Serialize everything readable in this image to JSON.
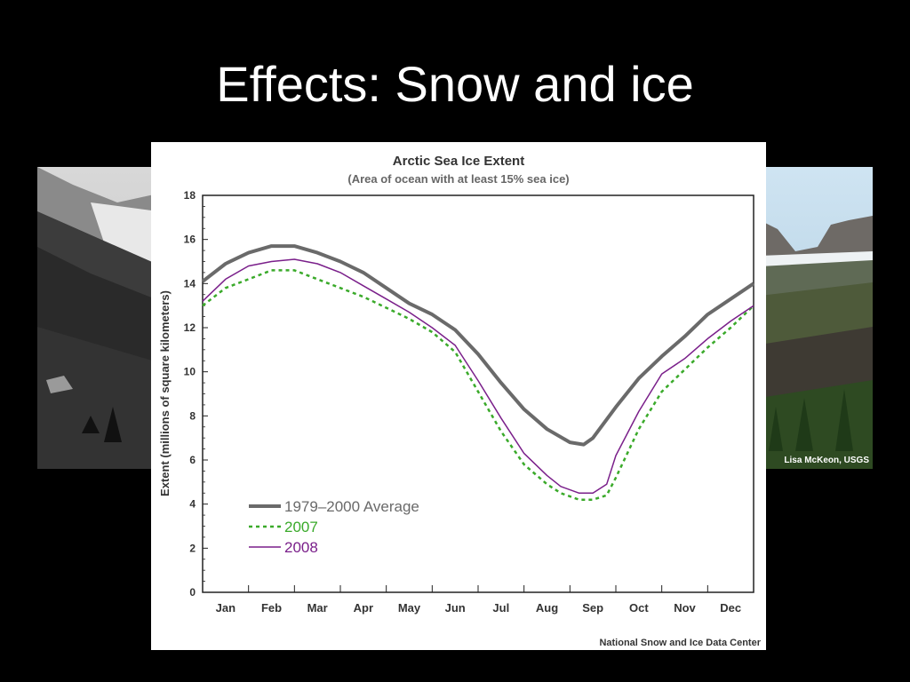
{
  "slide": {
    "title": "Effects: Snow and ice"
  },
  "photos": {
    "left": {
      "description_icon": "historic-glacier-photo"
    },
    "right": {
      "description_icon": "modern-glacier-photo",
      "credit": "Lisa McKeon, USGS"
    }
  },
  "colors": {
    "average": "#6a6a6a",
    "y2007": "#3aaa2a",
    "y2008": "#7a1f8a"
  },
  "chart_data": {
    "type": "line",
    "title": "Arctic Sea Ice Extent",
    "subtitle": "(Area of ocean with at least 15% sea ice)",
    "ylabel": "Extent (millions of square kilometers)",
    "xlabel": "",
    "source": "National Snow and Ice Data Center",
    "ylim": [
      0,
      18
    ],
    "xlim": [
      0,
      12
    ],
    "yticks": [
      "0",
      "2",
      "4",
      "6",
      "8",
      "10",
      "12",
      "14",
      "16",
      "18"
    ],
    "months": [
      "Jan",
      "Feb",
      "Mar",
      "Apr",
      "May",
      "Jun",
      "Jul",
      "Aug",
      "Sep",
      "Oct",
      "Nov",
      "Dec"
    ],
    "grid": false,
    "legend_position": "bottom-left",
    "series": [
      {
        "name": "1979–2000 Average",
        "style": "solid-thick",
        "x": [
          0,
          0.5,
          1,
          1.5,
          2,
          2.5,
          3,
          3.5,
          4,
          4.5,
          5,
          5.5,
          6,
          6.5,
          7,
          7.5,
          8,
          8.3,
          8.5,
          9,
          9.5,
          10,
          10.5,
          11,
          11.5,
          12
        ],
        "values": [
          14.1,
          14.9,
          15.4,
          15.7,
          15.7,
          15.4,
          15.0,
          14.5,
          13.8,
          13.1,
          12.6,
          11.9,
          10.8,
          9.5,
          8.3,
          7.4,
          6.8,
          6.7,
          7.0,
          8.4,
          9.7,
          10.7,
          11.6,
          12.6,
          13.3,
          14.0
        ]
      },
      {
        "name": "2007",
        "style": "dashed",
        "x": [
          0,
          0.5,
          1,
          1.5,
          2,
          2.5,
          3,
          3.5,
          4,
          4.5,
          5,
          5.5,
          6,
          6.5,
          7,
          7.5,
          7.8,
          8.2,
          8.5,
          8.8,
          9,
          9.5,
          10,
          10.5,
          11,
          11.5,
          12
        ],
        "values": [
          13.0,
          13.8,
          14.2,
          14.6,
          14.6,
          14.2,
          13.8,
          13.4,
          12.9,
          12.4,
          11.8,
          10.9,
          9.1,
          7.3,
          5.8,
          4.9,
          4.5,
          4.2,
          4.2,
          4.4,
          5.2,
          7.4,
          9.1,
          10.1,
          11.1,
          12.0,
          13.0
        ]
      },
      {
        "name": "2008",
        "style": "solid-thin",
        "x": [
          0,
          0.5,
          1,
          1.5,
          2,
          2.5,
          3,
          3.5,
          4,
          4.5,
          5,
          5.5,
          6,
          6.5,
          7,
          7.5,
          7.8,
          8.2,
          8.5,
          8.8,
          9,
          9.5,
          10,
          10.5,
          11,
          11.5,
          12
        ],
        "values": [
          13.2,
          14.2,
          14.8,
          15.0,
          15.1,
          14.9,
          14.5,
          13.9,
          13.3,
          12.7,
          12.0,
          11.2,
          9.6,
          7.9,
          6.3,
          5.3,
          4.8,
          4.5,
          4.5,
          4.9,
          6.2,
          8.2,
          9.9,
          10.6,
          11.5,
          12.3,
          13.0
        ]
      }
    ]
  }
}
